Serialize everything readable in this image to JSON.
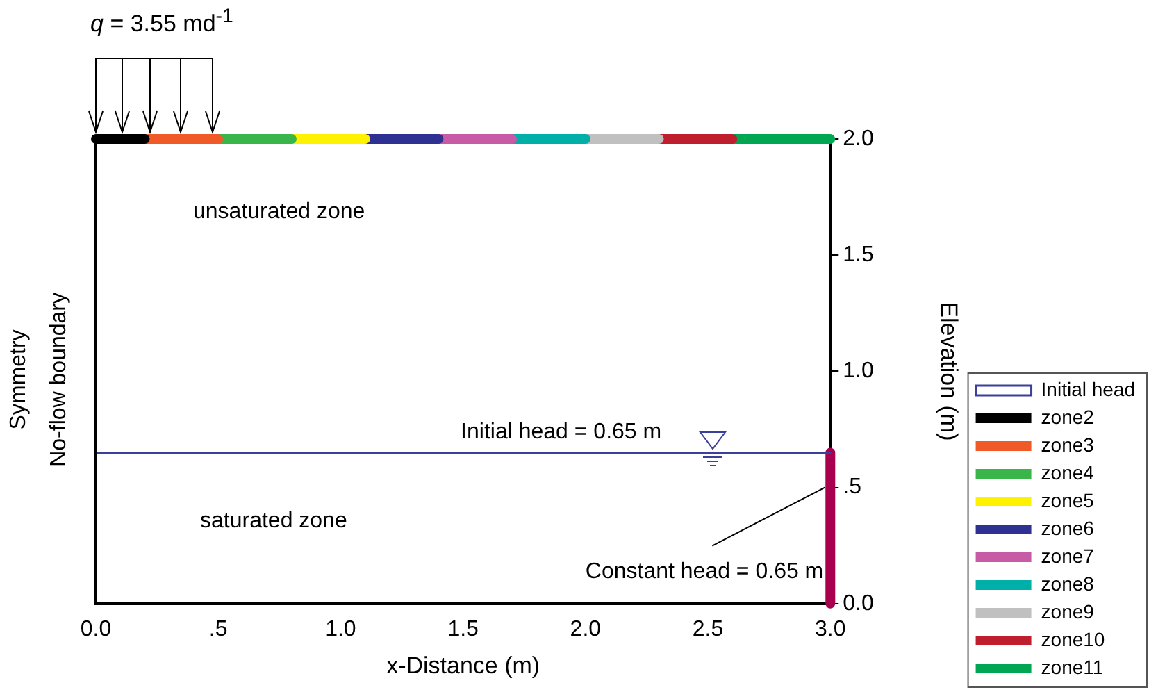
{
  "chart_data": {
    "type": "line",
    "xlabel": "x-Distance (m)",
    "ylabel": "Elevation (m)",
    "xlim": [
      0,
      3
    ],
    "ylim": [
      0,
      2
    ],
    "xticks": [
      {
        "value": 0,
        "label": "0.0"
      },
      {
        "value": 0.5,
        "label": ".5"
      },
      {
        "value": 1,
        "label": "1.0"
      },
      {
        "value": 1.5,
        "label": "1.5"
      },
      {
        "value": 2,
        "label": "2.0"
      },
      {
        "value": 2.5,
        "label": "2.5"
      },
      {
        "value": 3,
        "label": "3.0"
      }
    ],
    "yticks": [
      {
        "value": 0,
        "label": "0.0"
      },
      {
        "value": 0.5,
        "label": ".5"
      },
      {
        "value": 1,
        "label": "1.0"
      },
      {
        "value": 1.5,
        "label": "1.5"
      },
      {
        "value": 2,
        "label": "2.0"
      }
    ],
    "grid": false,
    "legend": "right",
    "marker": "none",
    "line_style": "solid",
    "series": [
      {
        "name": "Initial head",
        "color": "#3a3f9c",
        "x": [
          0,
          3
        ],
        "values": [
          0.65,
          0.65
        ]
      },
      {
        "name": "zone2",
        "color": "#000000",
        "x": [
          0,
          0.2
        ],
        "values": [
          2,
          2
        ]
      },
      {
        "name": "zone3",
        "color": "#f05a28",
        "x": [
          0.2,
          0.5
        ],
        "values": [
          2,
          2
        ]
      },
      {
        "name": "zone4",
        "color": "#3ab54a",
        "x": [
          0.5,
          0.8
        ],
        "values": [
          2,
          2
        ]
      },
      {
        "name": "zone5",
        "color": "#fff200",
        "x": [
          0.8,
          1.1
        ],
        "values": [
          2,
          2
        ]
      },
      {
        "name": "zone6",
        "color": "#2e3192",
        "x": [
          1.1,
          1.4
        ],
        "values": [
          2,
          2
        ]
      },
      {
        "name": "zone7",
        "color": "#c85ba6",
        "x": [
          1.4,
          1.7
        ],
        "values": [
          2,
          2
        ]
      },
      {
        "name": "zone8",
        "color": "#00b0a8",
        "x": [
          1.7,
          2.0
        ],
        "values": [
          2,
          2
        ]
      },
      {
        "name": "zone9",
        "color": "#c0c0c0",
        "x": [
          2.0,
          2.3
        ],
        "values": [
          2,
          2
        ]
      },
      {
        "name": "zone10",
        "color": "#be1e2d",
        "x": [
          2.3,
          2.6
        ],
        "values": [
          2,
          2
        ]
      },
      {
        "name": "zone11",
        "color": "#00a651",
        "x": [
          2.6,
          3.0
        ],
        "values": [
          2,
          2
        ]
      },
      {
        "color": "#a8004f",
        "x": [
          3,
          3
        ],
        "values": [
          0,
          0.65
        ]
      }
    ],
    "annotations": [
      "q = 3.55 md$^{-1}$",
      "unsaturated zone",
      "saturated zone",
      "Symmetry",
      "No-flow boundary",
      {
        "text": "Initial head = 0.65 m",
        "x": 1.9,
        "y": 0.65
      },
      {
        "text": "Constant head = 0.65 m",
        "x": 3,
        "y": 0.5
      }
    ]
  }
}
